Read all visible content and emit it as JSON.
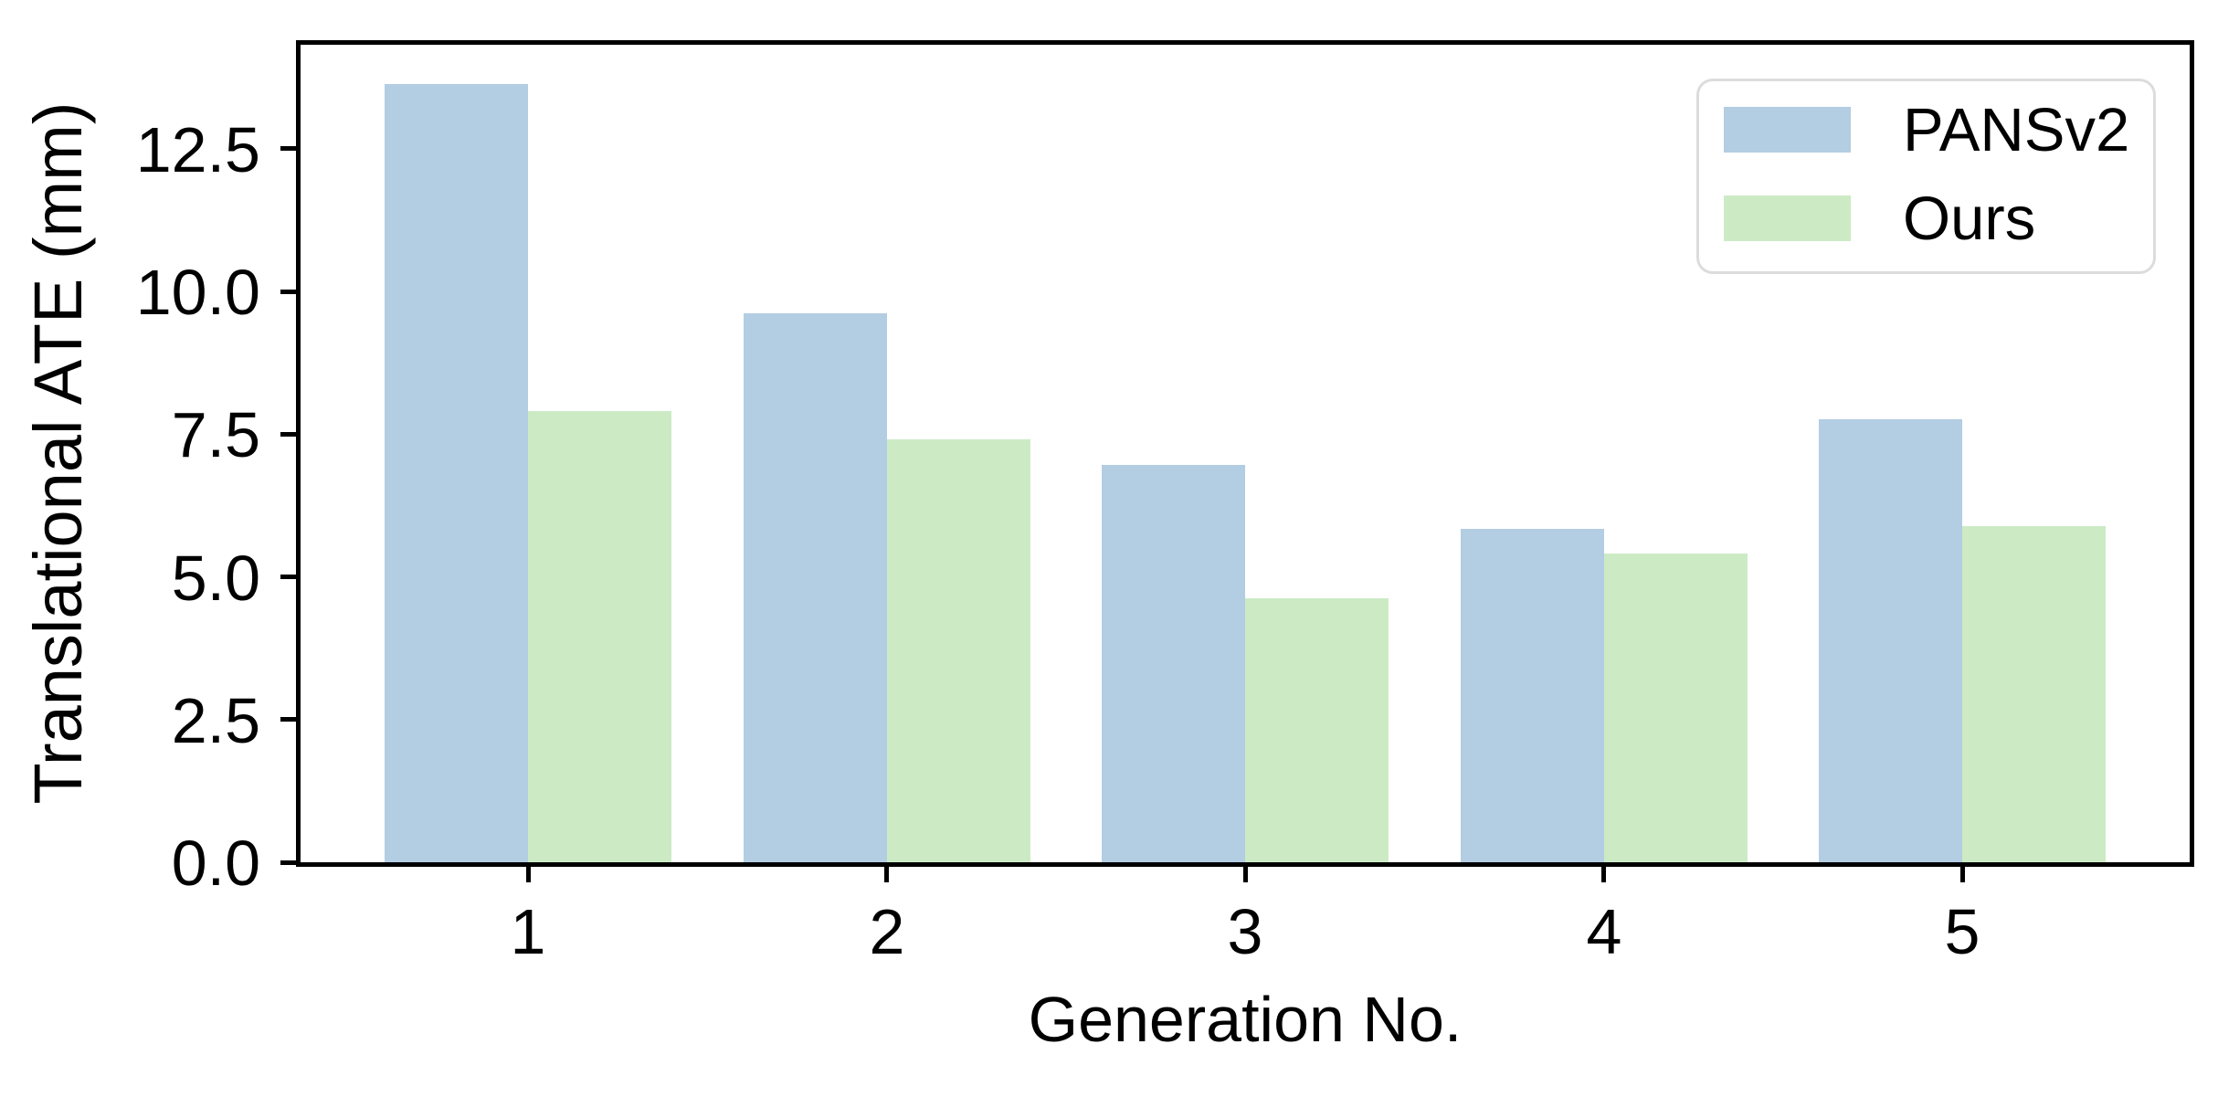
{
  "chart_data": {
    "type": "bar",
    "title": "",
    "categories": [
      "1",
      "2",
      "3",
      "4",
      "5"
    ],
    "series": [
      {
        "name": "PANSv2",
        "color": "#b3cde3",
        "values": [
          13.63,
          9.61,
          6.96,
          5.84,
          7.76
        ]
      },
      {
        "name": "Ours",
        "color": "#ccebc5",
        "values": [
          7.9,
          7.41,
          4.62,
          5.4,
          5.89
        ]
      }
    ],
    "xlabel": "Generation No.",
    "ylabel": "Translational ATE (mm)",
    "ytick_labels": [
      "0.0",
      "2.5",
      "5.0",
      "7.5",
      "10.0",
      "12.5"
    ],
    "ytick_values": [
      0,
      2.5,
      5,
      7.5,
      10,
      12.5
    ],
    "ylim": [
      0,
      14.32
    ],
    "xlim_padding_units": 0.64,
    "grid": false,
    "legend_position": "upper right",
    "axis_color": "#000000",
    "background_color": "#ffffff",
    "legend_border_color": "#dcdcdc"
  }
}
